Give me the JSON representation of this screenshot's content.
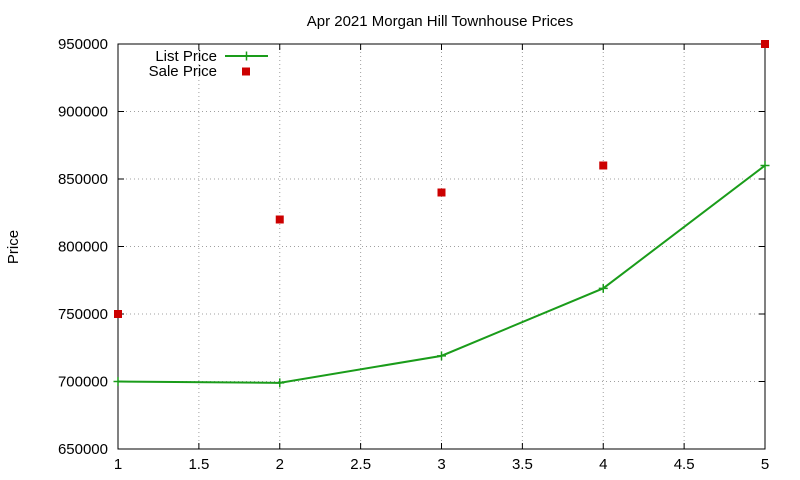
{
  "chart_data": {
    "type": "line",
    "title": "Apr 2021 Morgan Hill Townhouse Prices",
    "xlabel": "",
    "ylabel": "Price",
    "xlim": [
      1,
      5
    ],
    "ylim": [
      650000,
      950000
    ],
    "x_ticks": [
      "1",
      "1.5",
      "2",
      "2.5",
      "3",
      "3.5",
      "4",
      "4.5",
      "5"
    ],
    "y_ticks": [
      "650000",
      "700000",
      "750000",
      "800000",
      "850000",
      "900000",
      "950000"
    ],
    "grid": true,
    "legend_position": "top-left",
    "series": [
      {
        "name": "List Price",
        "style": "line+points",
        "marker": "plus",
        "color": "#1a9c1a",
        "x": [
          1,
          2,
          3,
          4,
          5
        ],
        "values": [
          700000,
          699000,
          719000,
          769000,
          860000
        ]
      },
      {
        "name": "Sale Price",
        "style": "points",
        "marker": "square",
        "color": "#cc0000",
        "x": [
          1,
          2,
          3,
          4,
          5
        ],
        "values": [
          750000,
          820000,
          840000,
          860000,
          950000
        ]
      }
    ]
  }
}
